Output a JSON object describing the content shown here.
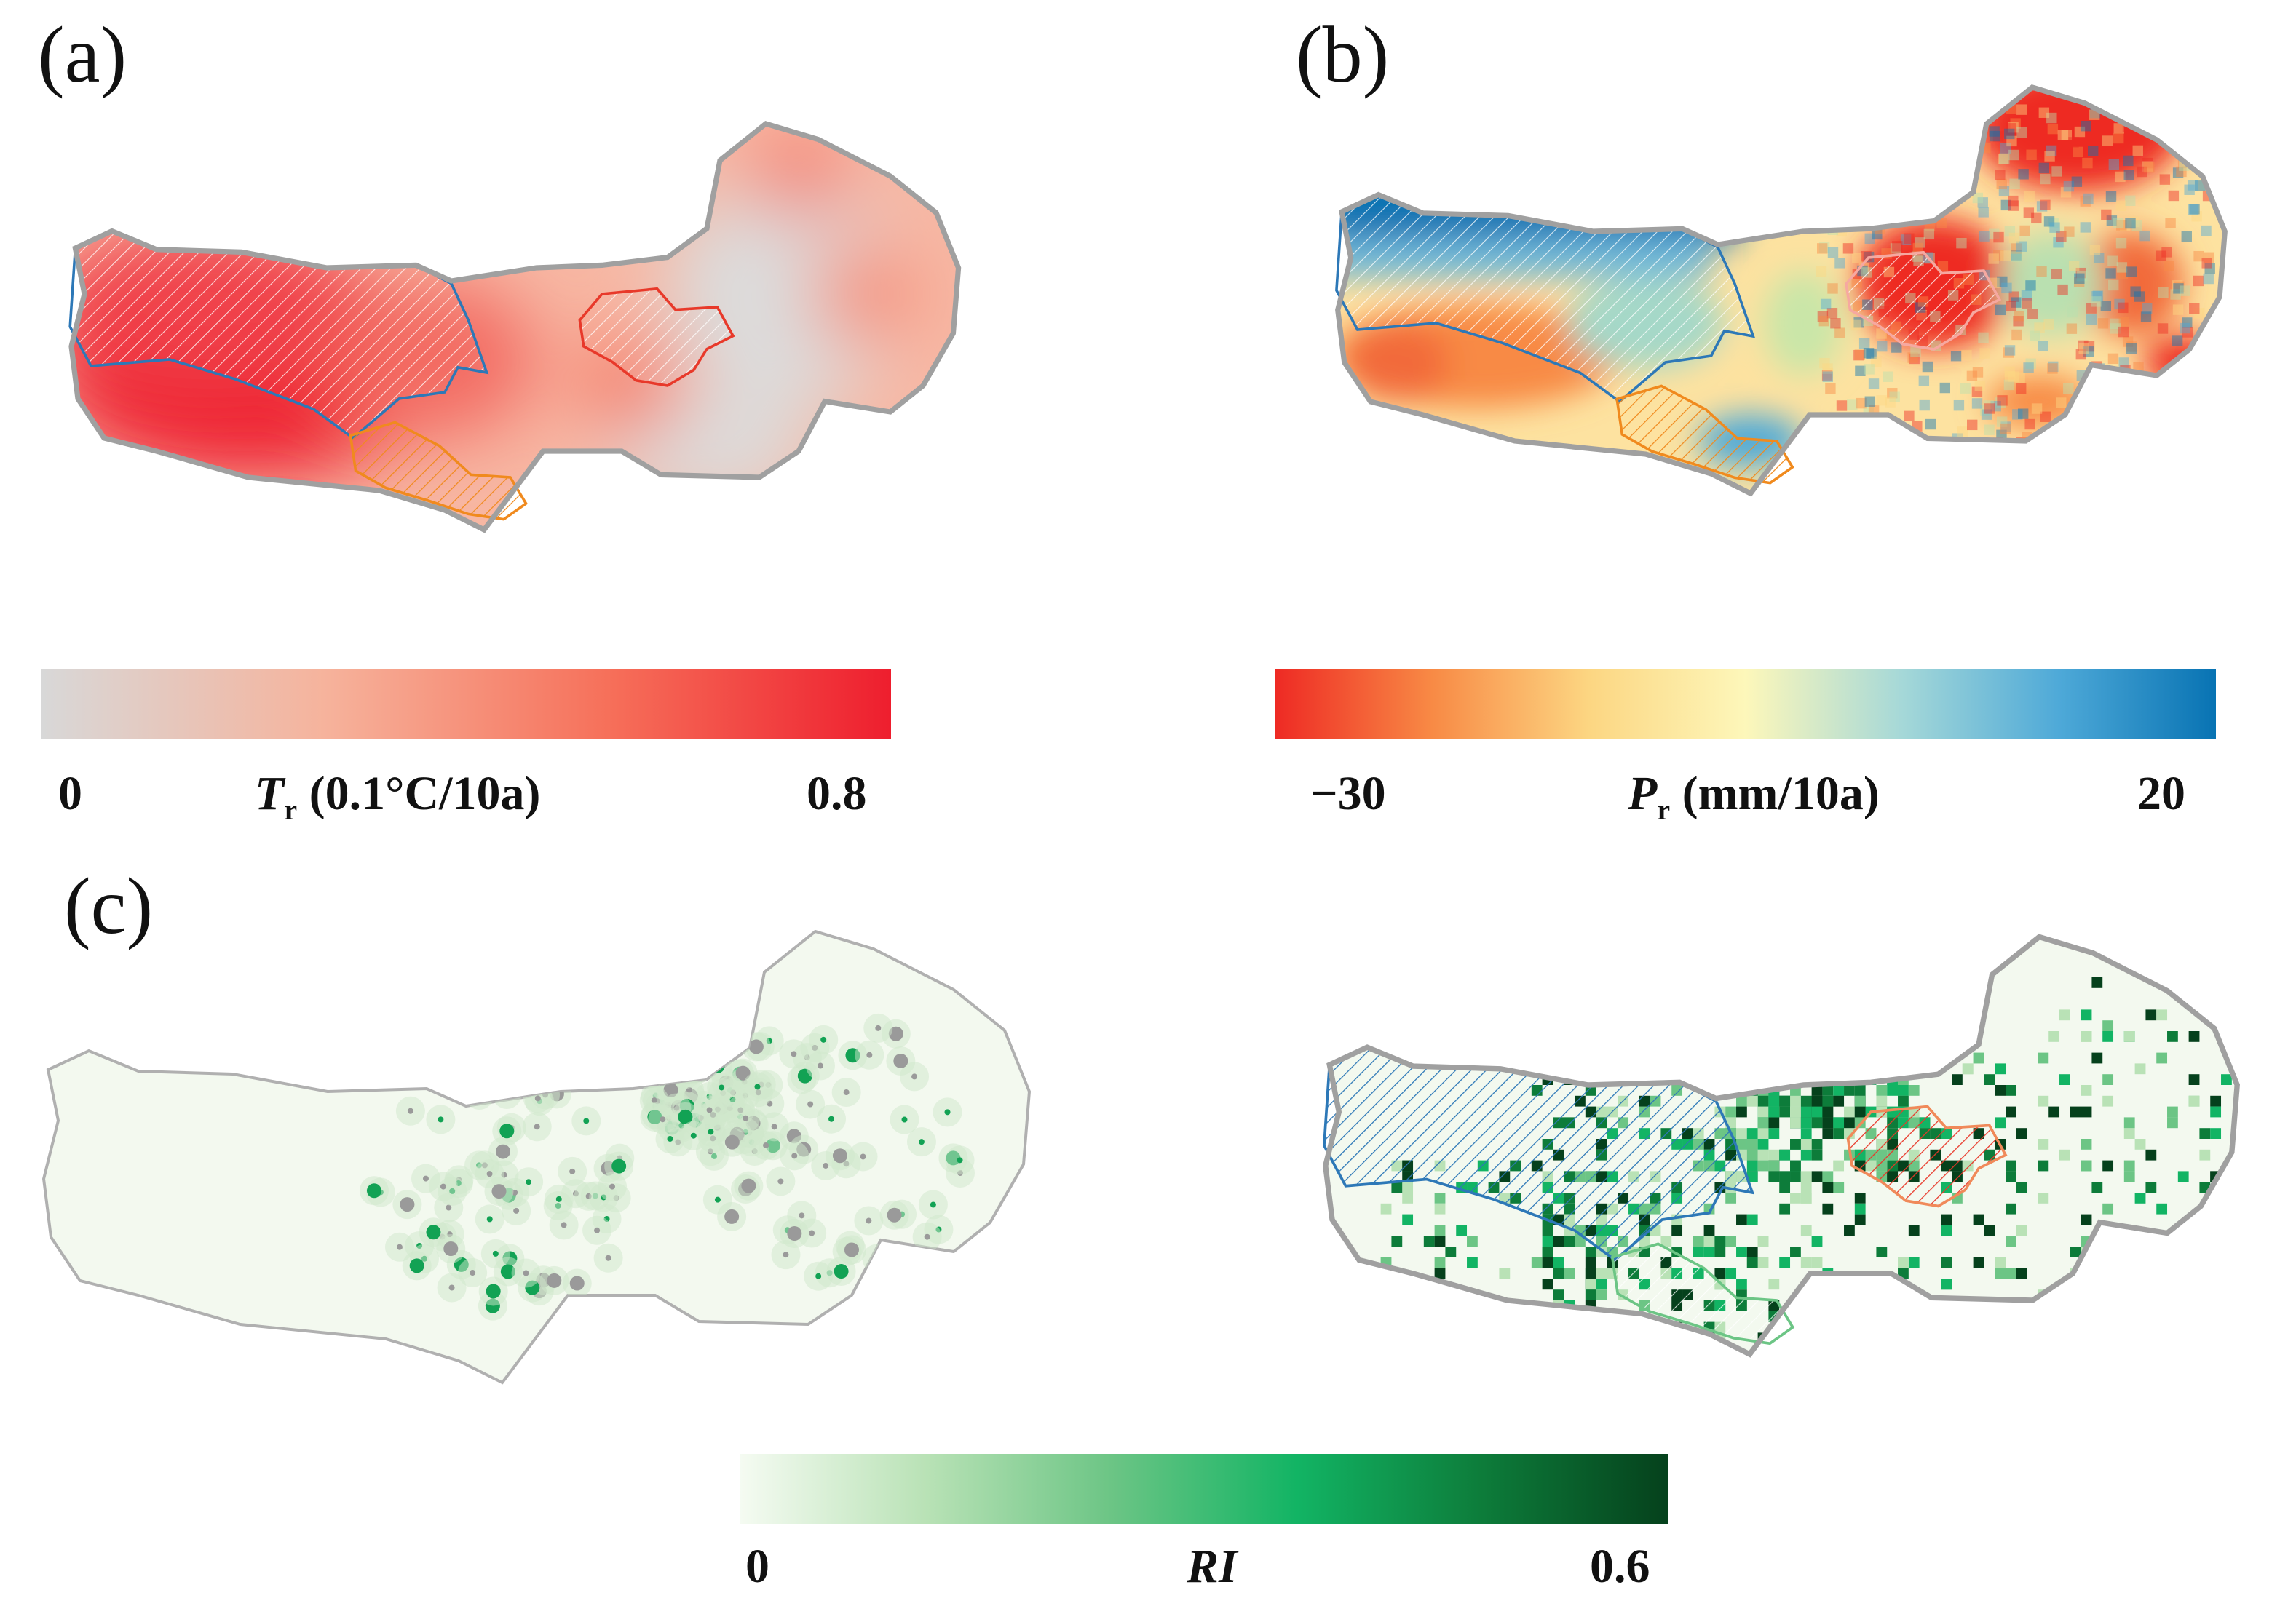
{
  "panels": {
    "a": {
      "label": "(a)"
    },
    "b": {
      "label": "(b)"
    },
    "c": {
      "label": "(c)"
    }
  },
  "colorbars": {
    "temperature": {
      "min": "0",
      "max": "0.8",
      "var": "T",
      "sub": "r",
      "unit": "(0.1°C/10a)",
      "colors": [
        "#d8d8d8",
        "#f6b39c",
        "#f6705a",
        "#ee1e2e"
      ]
    },
    "precipitation": {
      "min": "−30",
      "max": "20",
      "var": "P",
      "sub": "r",
      "unit": "(mm/10a)",
      "colors": [
        "#ee2a24",
        "#f88a45",
        "#fcd682",
        "#fdf7ba",
        "#a5d8d8",
        "#4ea9d8",
        "#0873b3"
      ]
    },
    "ri": {
      "min": "0",
      "max": "0.6",
      "var": "RI",
      "colors": [
        "#f5fbf2",
        "#b9e2b6",
        "#6cc585",
        "#12b464",
        "#0d7c3a",
        "#05411c"
      ]
    }
  },
  "region_colors": {
    "outline": "#a0a0a0",
    "zone_blue": "#2d78b7",
    "zone_orange": "#f08a1e",
    "zone_red": "#e8392a"
  }
}
